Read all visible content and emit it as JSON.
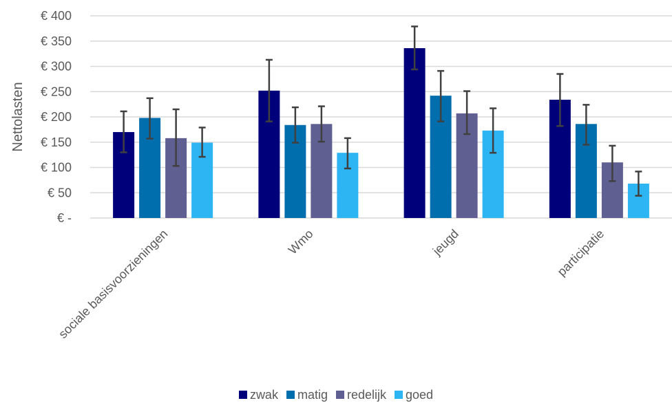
{
  "chart_data": {
    "type": "bar",
    "ylabel": "Nettolasten",
    "xlabel": "",
    "title": "",
    "ylim": [
      0,
      400
    ],
    "yticks": [
      {
        "value": 0,
        "label": "€ -"
      },
      {
        "value": 50,
        "label": "€ 50"
      },
      {
        "value": 100,
        "label": "€ 100"
      },
      {
        "value": 150,
        "label": "€ 150"
      },
      {
        "value": 200,
        "label": "€ 200"
      },
      {
        "value": 250,
        "label": "€ 250"
      },
      {
        "value": 300,
        "label": "€ 300"
      },
      {
        "value": 350,
        "label": "€ 350"
      },
      {
        "value": 400,
        "label": "€ 400"
      }
    ],
    "categories": [
      "sociale basisvoorzieningen",
      "Wmo",
      "jeugd",
      "participatie"
    ],
    "series": [
      {
        "name": "zwak",
        "color": "#00007a",
        "values": [
          170,
          252,
          336,
          234
        ],
        "err_low": [
          130,
          191,
          294,
          182
        ],
        "err_high": [
          211,
          313,
          379,
          285
        ]
      },
      {
        "name": "matig",
        "color": "#006ead",
        "values": [
          198,
          184,
          242,
          186
        ],
        "err_low": [
          157,
          149,
          191,
          145
        ],
        "err_high": [
          237,
          219,
          291,
          224
        ]
      },
      {
        "name": "redelijk",
        "color": "#605f91",
        "values": [
          158,
          186,
          207,
          110
        ],
        "err_low": [
          103,
          151,
          166,
          73
        ],
        "err_high": [
          215,
          221,
          251,
          143
        ]
      },
      {
        "name": "goed",
        "color": "#2db4f3",
        "values": [
          149,
          129,
          173,
          68
        ],
        "err_low": [
          121,
          98,
          129,
          44
        ],
        "err_high": [
          179,
          158,
          217,
          92
        ]
      }
    ],
    "grid": true,
    "legend_position": "bottom"
  }
}
